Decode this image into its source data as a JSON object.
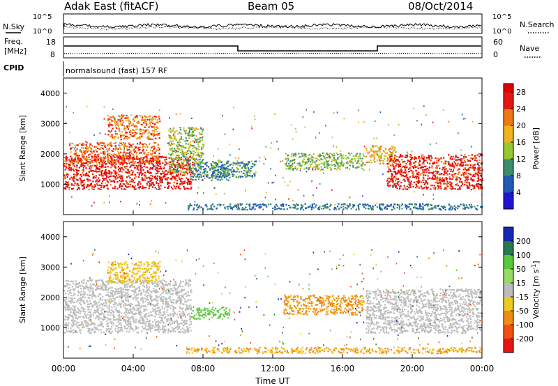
{
  "header": {
    "station": "Adak East (fitACF)",
    "beam": "Beam 05",
    "date": "08/Oct/2014"
  },
  "panels": {
    "nsky_label": "N.Sky",
    "nsearch_label": "N.Search",
    "nsky_ticks": [
      "10^5",
      "10^0"
    ],
    "nsearch_ticks": [
      "10^5",
      "10^0"
    ],
    "freq_label_1": "Freq.",
    "freq_label_2": "[MHz]",
    "freq_ticks": [
      "18",
      "8"
    ],
    "nave_label": "Nave",
    "nave_ticks": [
      "60",
      "0"
    ],
    "cpid_label": "CPID",
    "cpid_text": "normalsound (fast) 157 RF"
  },
  "chart_data": [
    {
      "type": "heatmap",
      "title": "",
      "xlabel": "Time UT",
      "ylabel": "Slant Range [km]",
      "x_tick_labels": [
        "00:00",
        "04:00",
        "08:00",
        "12:00",
        "16:00",
        "20:00",
        "00:00"
      ],
      "xlim": [
        0,
        24
      ],
      "ylim": [
        0,
        4500
      ],
      "y_ticks": [
        1000,
        2000,
        3000,
        4000
      ],
      "colorbar": {
        "label": "Power [dB]",
        "ticks": [
          4,
          8,
          12,
          16,
          20,
          24,
          28
        ],
        "range": [
          0,
          30
        ]
      },
      "regions": [
        {
          "t": [
            0.0,
            7.4
          ],
          "r_low": 850,
          "r_high": 1950,
          "value": 27
        },
        {
          "t": [
            0.3,
            5.5
          ],
          "r_low": 1700,
          "r_high": 2400,
          "value": 23
        },
        {
          "t": [
            2.5,
            5.5
          ],
          "r_low": 2500,
          "r_high": 3300,
          "value": 22
        },
        {
          "t": [
            6.0,
            8.0
          ],
          "r_low": 1400,
          "r_high": 2900,
          "value": 14
        },
        {
          "t": [
            7.2,
            9.5
          ],
          "r_low": 1150,
          "r_high": 1750,
          "value": 9
        },
        {
          "t": [
            8.5,
            11.0
          ],
          "r_low": 1250,
          "r_high": 1800,
          "value": 10
        },
        {
          "t": [
            12.6,
            17.2
          ],
          "r_low": 1500,
          "r_high": 2050,
          "value": 13
        },
        {
          "t": [
            17.3,
            19.0
          ],
          "r_low": 1700,
          "r_high": 2300,
          "value": 18
        },
        {
          "t": [
            18.5,
            24.0
          ],
          "r_low": 850,
          "r_high": 2000,
          "value": 26
        },
        {
          "t": [
            7.0,
            24.0
          ],
          "r_low": 180,
          "r_high": 380,
          "value": 8
        }
      ]
    },
    {
      "type": "heatmap",
      "title": "",
      "xlabel": "Time UT",
      "ylabel": "Slant Range [km]",
      "x_tick_labels": [
        "00:00",
        "04:00",
        "08:00",
        "12:00",
        "16:00",
        "20:00",
        "00:00"
      ],
      "xlim": [
        0,
        24
      ],
      "ylim": [
        0,
        4500
      ],
      "y_ticks": [
        1000,
        2000,
        3000,
        4000
      ],
      "colorbar": {
        "label": "Velocity [m s^-1]",
        "ticks": [
          200,
          100,
          50,
          15,
          -15,
          -50,
          -100,
          -200
        ],
        "range": [
          -250,
          250
        ]
      },
      "regions": [
        {
          "t": [
            0.0,
            7.3
          ],
          "r_low": 850,
          "r_high": 2600,
          "value": 0
        },
        {
          "t": [
            2.5,
            5.5
          ],
          "r_low": 2500,
          "r_high": 3200,
          "value": -40
        },
        {
          "t": [
            7.3,
            9.5
          ],
          "r_low": 1300,
          "r_high": 1700,
          "value": 40
        },
        {
          "t": [
            12.6,
            17.2
          ],
          "r_low": 1450,
          "r_high": 2100,
          "value": -60
        },
        {
          "t": [
            17.3,
            24.0
          ],
          "r_low": 850,
          "r_high": 2300,
          "value": 0
        },
        {
          "t": [
            7.0,
            24.0
          ],
          "r_low": 180,
          "r_high": 380,
          "value": -50
        }
      ]
    }
  ]
}
